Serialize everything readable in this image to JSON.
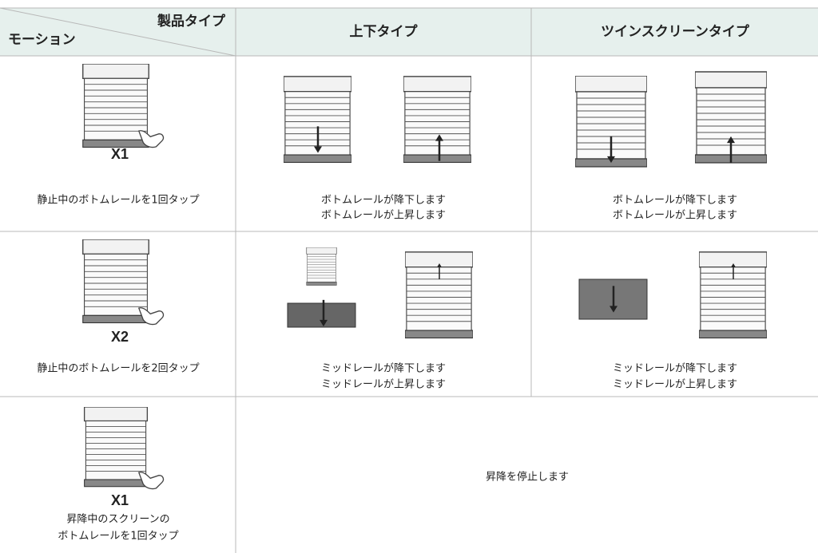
{
  "header": {
    "product_type": "製品タイプ",
    "motion": "モーション",
    "columns": [
      "上下タイプ",
      "ツインスクリーンタイプ"
    ]
  },
  "rows": [
    {
      "tap_label": "X1",
      "motion": [
        "静止中のボトムレールを1回タップ"
      ],
      "results": [
        [
          "ボトムレールが降下します",
          "ボトムレールが上昇します"
        ],
        [
          "ボトムレールが降下します",
          "ボトムレールが上昇します"
        ]
      ]
    },
    {
      "tap_label": "X2",
      "motion": [
        "静止中のボトムレールを2回タップ"
      ],
      "results": [
        [
          "ミッドレールが降下します",
          "ミッドレールが上昇します"
        ],
        [
          "ミッドレールが降下します",
          "ミッドレールが上昇します"
        ]
      ]
    },
    {
      "tap_label": "X1",
      "motion": [
        "昇降中のスクリーンの",
        "ボトムレールを1回タップ"
      ],
      "result": "昇降を停止します"
    }
  ]
}
